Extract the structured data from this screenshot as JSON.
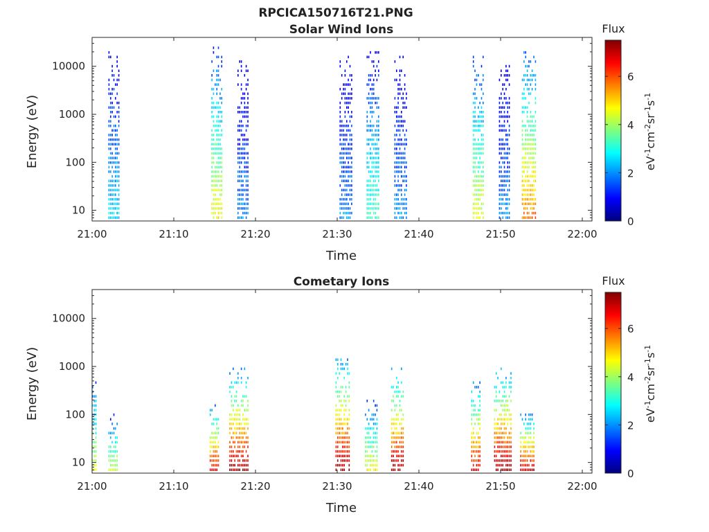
{
  "figure_title": "RPCICA150716T21.PNG",
  "colors": {
    "jet": [
      "#00007f",
      "#0000ff",
      "#007fff",
      "#00ffff",
      "#7fff7f",
      "#ffff00",
      "#ff7f00",
      "#ff0000",
      "#7f0000"
    ]
  },
  "chart_data": [
    {
      "type": "heatmap",
      "title": "Solar Wind Ions",
      "xlabel": "Time",
      "ylabel": "Energy (eV)",
      "xticks": [
        "21:00",
        "21:10",
        "21:20",
        "21:30",
        "21:40",
        "21:50",
        "22:00"
      ],
      "xlim_min": [
        0,
        60
      ],
      "yscale": "log",
      "ylim": [
        6,
        40000
      ],
      "yticks": [
        {
          "value": 10,
          "label": "10"
        },
        {
          "value": 100,
          "label": "100"
        },
        {
          "value": 1000,
          "label": "1000"
        },
        {
          "value": 10000,
          "label": "10000"
        }
      ],
      "colorbar": {
        "label": "Flux",
        "units": "eV-1cm-2sr-1s-1",
        "range": [
          0,
          7.5
        ],
        "ticks": [
          "0",
          "2",
          "4",
          "6"
        ]
      },
      "bursts": [
        {
          "t": [
            2.0,
            3.4
          ],
          "emax": 20000,
          "fpeak": 2.6
        },
        {
          "t": [
            14.6,
            16.0
          ],
          "emax": 25000,
          "fpeak": 4.8
        },
        {
          "t": [
            17.8,
            19.2
          ],
          "emax": 12000,
          "fpeak": 2.0
        },
        {
          "t": [
            30.3,
            31.8
          ],
          "emax": 18000,
          "fpeak": 2.0
        },
        {
          "t": [
            33.6,
            35.2
          ],
          "emax": 20000,
          "fpeak": 3.4
        },
        {
          "t": [
            37.0,
            38.6
          ],
          "emax": 15000,
          "fpeak": 2.0
        },
        {
          "t": [
            46.6,
            48.0
          ],
          "emax": 18000,
          "fpeak": 4.6
        },
        {
          "t": [
            49.8,
            51.2
          ],
          "emax": 12000,
          "fpeak": 2.0
        },
        {
          "t": [
            52.6,
            54.4
          ],
          "emax": 23000,
          "fpeak": 5.8
        }
      ]
    },
    {
      "type": "heatmap",
      "title": "Cometary Ions",
      "xlabel": "Time",
      "ylabel": "Energy (eV)",
      "xticks": [
        "21:00",
        "21:10",
        "21:20",
        "21:30",
        "21:40",
        "21:50",
        "22:00"
      ],
      "xlim_min": [
        0,
        60
      ],
      "yscale": "log",
      "ylim": [
        6,
        40000
      ],
      "yticks": [
        {
          "value": 10,
          "label": "10"
        },
        {
          "value": 100,
          "label": "100"
        },
        {
          "value": 1000,
          "label": "1000"
        },
        {
          "value": 10000,
          "label": "10000"
        }
      ],
      "colorbar": {
        "label": "Flux",
        "units": "eV-1cm-2sr-1s-1",
        "range": [
          0,
          7.5
        ],
        "ticks": [
          "0",
          "2",
          "4",
          "6"
        ]
      },
      "bursts": [
        {
          "t": [
            0.0,
            0.6
          ],
          "emax": 700,
          "fpeak": 4.5
        },
        {
          "t": [
            2.0,
            3.2
          ],
          "emax": 100,
          "fpeak": 4.6
        },
        {
          "t": [
            14.4,
            15.6
          ],
          "emax": 150,
          "fpeak": 7.0
        },
        {
          "t": [
            16.8,
            19.2
          ],
          "emax": 900,
          "fpeak": 7.4
        },
        {
          "t": [
            29.8,
            31.6
          ],
          "emax": 1500,
          "fpeak": 7.5
        },
        {
          "t": [
            33.4,
            35.0
          ],
          "emax": 200,
          "fpeak": 4.8
        },
        {
          "t": [
            36.6,
            38.2
          ],
          "emax": 900,
          "fpeak": 7.4
        },
        {
          "t": [
            46.4,
            47.6
          ],
          "emax": 450,
          "fpeak": 7.0
        },
        {
          "t": [
            49.2,
            51.4
          ],
          "emax": 950,
          "fpeak": 7.5
        },
        {
          "t": [
            52.4,
            54.2
          ],
          "emax": 110,
          "fpeak": 7.2
        }
      ]
    }
  ]
}
